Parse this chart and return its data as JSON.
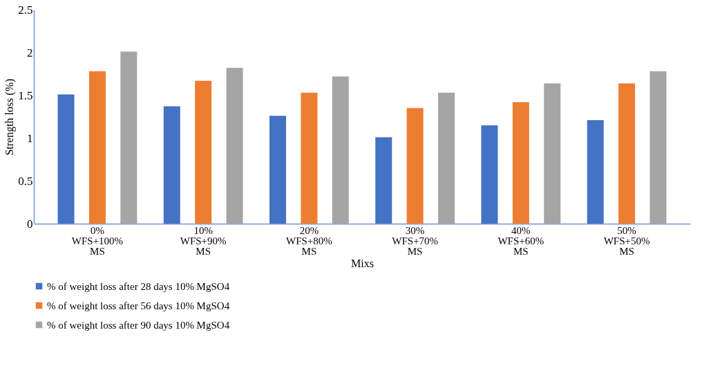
{
  "chart_data": {
    "type": "bar",
    "xlabel": "Mixs",
    "ylabel": "Strength loss (%)",
    "categories": [
      "0%\nWFS+100%\nMS",
      "10%\nWFS+90%\nMS",
      "20%\nWFS+80%\nMS",
      "30%\nWFS+70%\nMS",
      "40%\nWFS+60%\nMS",
      "50%\nWFS+50%\nMS"
    ],
    "series": [
      {
        "name": "% of weight loss after 28 days            10% MgSO4",
        "color": "#4472c4",
        "values": [
          1.51,
          1.37,
          1.26,
          1.01,
          1.15,
          1.21
        ]
      },
      {
        "name": "% of weight loss after 56 days            10% MgSO4",
        "color": "#ed7d31",
        "values": [
          1.78,
          1.67,
          1.53,
          1.35,
          1.42,
          1.64
        ]
      },
      {
        "name": "% of weight loss after 90 days            10% MgSO4",
        "color": "#a5a5a5",
        "values": [
          2.01,
          1.82,
          1.72,
          1.53,
          1.64,
          1.78
        ]
      }
    ],
    "ylim": [
      0,
      2.5
    ],
    "yticks": [
      0,
      0.5,
      1,
      1.5,
      2,
      2.5
    ],
    "grid": false,
    "legend": "bottom"
  }
}
